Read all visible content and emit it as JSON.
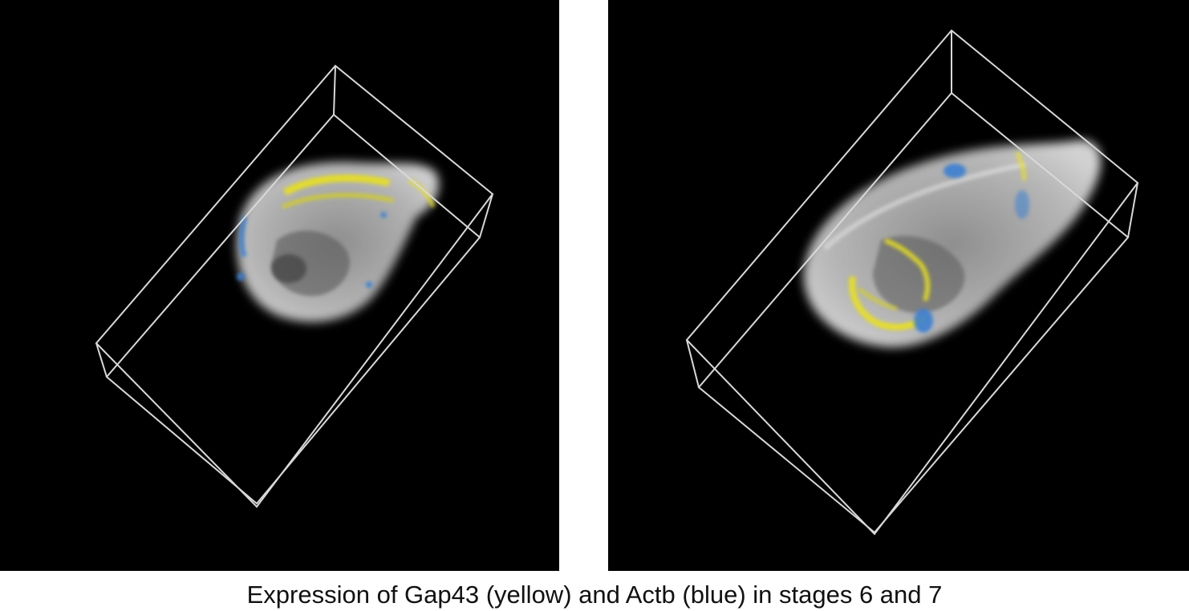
{
  "caption": "Expression of Gap43 (yellow) and Actb (blue) in stages 6 and 7",
  "colors": {
    "background": "#000000",
    "bounding_box": "#d9d9d9",
    "tissue": "#a9a9a9",
    "gap43_expression": "#e8e020",
    "actb_expression": "#3a7fd0"
  },
  "panels": [
    {
      "stage": "6"
    },
    {
      "stage": "7"
    }
  ]
}
